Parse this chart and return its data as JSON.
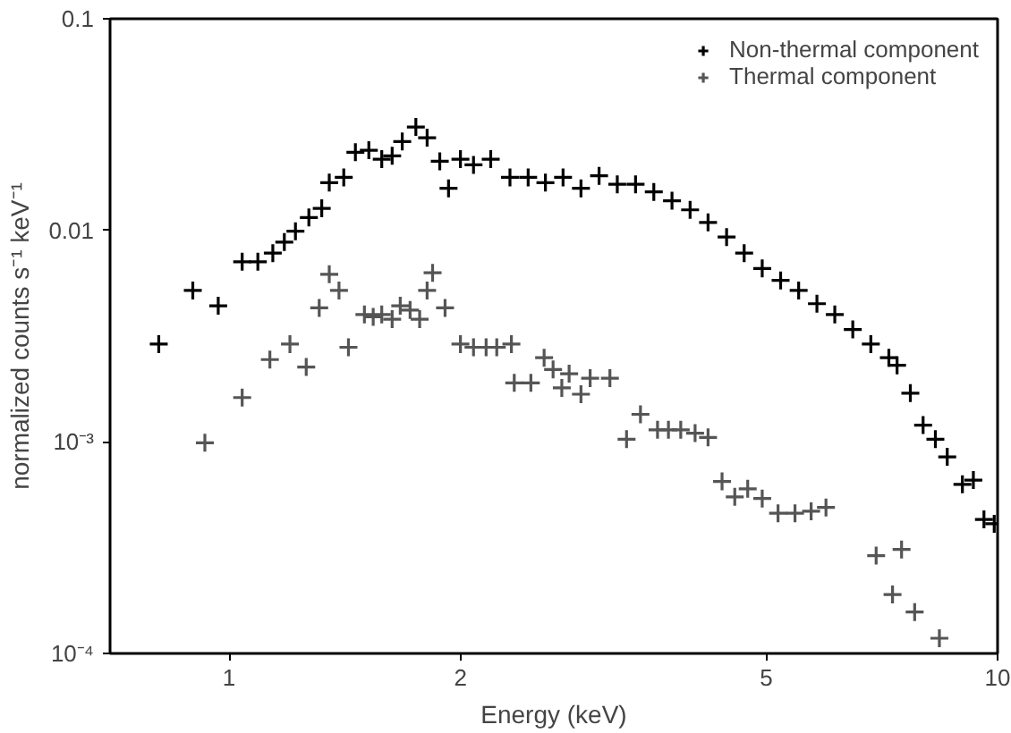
{
  "chart_data": {
    "type": "scatter",
    "xlabel": "Energy (keV)",
    "ylabel": "normalized counts s⁻¹ keV⁻¹",
    "log": "xy",
    "grid": false,
    "legend": "top right",
    "marker": "cross",
    "xlim": [
      0.7,
      10
    ],
    "ylim": [
      0.0001,
      0.1
    ],
    "xticks": [
      1,
      2,
      5,
      10
    ],
    "yticks": [
      {
        "value": 0.0001,
        "label": "10⁻⁴"
      },
      {
        "value": 0.001,
        "label": "10⁻³"
      },
      0.01,
      0.1
    ],
    "series": [
      {
        "name": "Non-thermal component",
        "color": "#000000",
        "x": [
          0.81,
          0.897,
          0.968,
          1.04,
          1.09,
          1.14,
          1.18,
          1.22,
          1.27,
          1.32,
          1.35,
          1.41,
          1.46,
          1.52,
          1.58,
          1.63,
          1.68,
          1.75,
          1.81,
          1.88,
          1.93,
          2.0,
          2.08,
          2.19,
          2.32,
          2.45,
          2.58,
          2.72,
          2.87,
          3.03,
          3.2,
          3.38,
          3.57,
          3.77,
          3.98,
          4.2,
          4.44,
          4.68,
          4.94,
          5.22,
          5.51,
          5.82,
          6.14,
          6.48,
          6.84,
          7.22,
          7.4,
          7.7,
          8.0,
          8.3,
          8.6,
          9.0,
          9.3,
          9.6,
          9.9
        ],
        "values": [
          0.0029,
          0.0052,
          0.0044,
          0.0071,
          0.0071,
          0.0078,
          0.0088,
          0.0099,
          0.0115,
          0.0127,
          0.0168,
          0.0178,
          0.0234,
          0.0239,
          0.0217,
          0.0225,
          0.0263,
          0.0308,
          0.0274,
          0.0212,
          0.0158,
          0.0217,
          0.0204,
          0.0217,
          0.0178,
          0.0178,
          0.0168,
          0.0178,
          0.0158,
          0.0181,
          0.0165,
          0.0165,
          0.0152,
          0.0138,
          0.0125,
          0.0109,
          0.0093,
          0.0078,
          0.0066,
          0.0058,
          0.0052,
          0.0045,
          0.004,
          0.0034,
          0.0029,
          0.0025,
          0.0023,
          0.0017,
          0.0012,
          0.00103,
          0.00085,
          0.00063,
          0.00066,
          0.00043,
          0.00041
        ]
      },
      {
        "name": "Thermal component",
        "color": "#555555",
        "x": [
          0.93,
          1.04,
          1.13,
          1.2,
          1.26,
          1.31,
          1.35,
          1.39,
          1.43,
          1.5,
          1.54,
          1.58,
          1.63,
          1.67,
          1.72,
          1.77,
          1.81,
          1.84,
          1.91,
          2.0,
          2.08,
          2.16,
          2.23,
          2.33,
          2.35,
          2.47,
          2.57,
          2.64,
          2.71,
          2.77,
          2.87,
          2.95,
          3.13,
          3.29,
          3.43,
          3.61,
          3.73,
          3.87,
          4.04,
          4.2,
          4.38,
          4.55,
          4.73,
          4.94,
          5.18,
          5.45,
          5.72,
          5.98,
          6.95,
          7.3,
          7.5,
          7.8,
          8.4
        ],
        "values": [
          0.00099,
          0.00162,
          0.00245,
          0.0029,
          0.00226,
          0.0043,
          0.0062,
          0.0052,
          0.0028,
          0.004,
          0.0039,
          0.004,
          0.0038,
          0.0044,
          0.0042,
          0.0038,
          0.0052,
          0.0063,
          0.0043,
          0.0029,
          0.0028,
          0.0028,
          0.0028,
          0.0029,
          0.0019,
          0.0019,
          0.0025,
          0.0022,
          0.0018,
          0.0021,
          0.00168,
          0.002,
          0.002,
          0.00103,
          0.00135,
          0.00114,
          0.00114,
          0.00114,
          0.0011,
          0.00105,
          0.00065,
          0.00055,
          0.0006,
          0.00054,
          0.00046,
          0.00046,
          0.00047,
          0.00049,
          0.00029,
          0.00019,
          0.00031,
          0.000157,
          0.000118
        ]
      }
    ]
  }
}
